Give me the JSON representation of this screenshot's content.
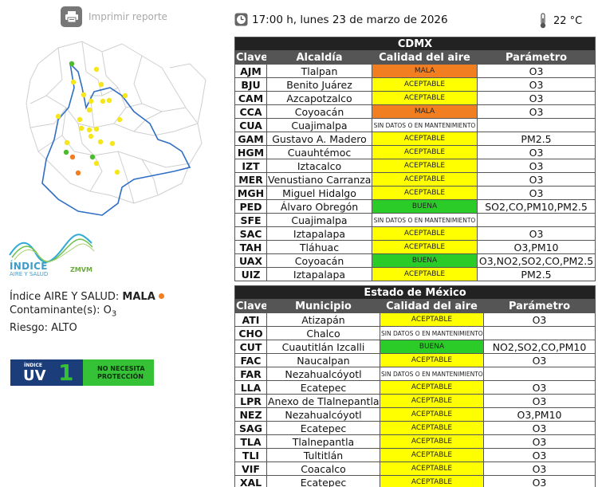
{
  "header": {
    "datetime": "17:00 h, lunes 23 de marzo de 2026",
    "temperature": "22 °C"
  },
  "print_report": {
    "label": "Imprimir reporte"
  },
  "logo": {
    "line1": "ÍNDICE",
    "line2": "AIRE Y SALUD",
    "line3": "ZMVM"
  },
  "status": {
    "index_label": "Índice AIRE Y SALUD:",
    "index_value": "MALA",
    "pollutant_label": "Contaminante(s):",
    "pollutant_value": "O",
    "pollutant_sub": "3",
    "risk_label": "Riesgo:",
    "risk_value": "ALTO"
  },
  "uv": {
    "small": "ÍNDICE",
    "big": "UV",
    "value": "1",
    "text1": "NO NECESITA",
    "text2": "PROTECCIÓN"
  },
  "colors": {
    "MALA": "#f27e22",
    "ACEPTABLE": "#ffff00",
    "BUENA": "#2bcc27",
    "SIN DATOS O EN MANTENIMIENTO": "#ffffff",
    "map_yellow": "#f5e71b",
    "map_green": "#4dbb2e",
    "map_orange": "#f27e22"
  },
  "map": {
    "stations": [
      {
        "name": "AJM",
        "level": "MALA"
      },
      {
        "name": "BJU",
        "level": "ACEPTABLE"
      },
      {
        "name": "CAM",
        "level": "ACEPTABLE"
      },
      {
        "name": "CCA",
        "level": "MALA"
      },
      {
        "name": "GAM",
        "level": "ACEPTABLE"
      },
      {
        "name": "HGM",
        "level": "ACEPTABLE"
      },
      {
        "name": "PED",
        "level": "BUENA"
      },
      {
        "name": "UAX",
        "level": "BUENA"
      },
      {
        "name": "CUT",
        "level": "BUENA"
      }
    ]
  },
  "cdmx": {
    "title": "CDMX",
    "headers": [
      "Clave",
      "Alcaldía",
      "Calidad del aire",
      "Parámetro"
    ],
    "rows": [
      {
        "clave": "AJM",
        "nombre": "Tlalpan",
        "calidad": "MALA",
        "parametro": "O3"
      },
      {
        "clave": "BJU",
        "nombre": "Benito Juárez",
        "calidad": "ACEPTABLE",
        "parametro": "O3"
      },
      {
        "clave": "CAM",
        "nombre": "Azcapotzalco",
        "calidad": "ACEPTABLE",
        "parametro": "O3"
      },
      {
        "clave": "CCA",
        "nombre": "Coyoacán",
        "calidad": "MALA",
        "parametro": "O3"
      },
      {
        "clave": "CUA",
        "nombre": "Cuajimalpa",
        "calidad": "SIN DATOS O EN MANTENIMIENTO",
        "parametro": ""
      },
      {
        "clave": "GAM",
        "nombre": "Gustavo A. Madero",
        "calidad": "ACEPTABLE",
        "parametro": "PM2.5"
      },
      {
        "clave": "HGM",
        "nombre": "Cuauhtémoc",
        "calidad": "ACEPTABLE",
        "parametro": "O3"
      },
      {
        "clave": "IZT",
        "nombre": "Iztacalco",
        "calidad": "ACEPTABLE",
        "parametro": "O3"
      },
      {
        "clave": "MER",
        "nombre": "Venustiano Carranza",
        "calidad": "ACEPTABLE",
        "parametro": "O3"
      },
      {
        "clave": "MGH",
        "nombre": "Miguel Hidalgo",
        "calidad": "ACEPTABLE",
        "parametro": "O3"
      },
      {
        "clave": "PED",
        "nombre": "Álvaro Obregón",
        "calidad": "BUENA",
        "parametro": "SO2,CO,PM10,PM2.5"
      },
      {
        "clave": "SFE",
        "nombre": "Cuajimalpa",
        "calidad": "SIN DATOS O EN MANTENIMIENTO",
        "parametro": ""
      },
      {
        "clave": "SAC",
        "nombre": "Iztapalapa",
        "calidad": "ACEPTABLE",
        "parametro": "O3"
      },
      {
        "clave": "TAH",
        "nombre": "Tláhuac",
        "calidad": "ACEPTABLE",
        "parametro": "O3,PM10"
      },
      {
        "clave": "UAX",
        "nombre": "Coyoacán",
        "calidad": "BUENA",
        "parametro": "O3,NO2,SO2,CO,PM2.5"
      },
      {
        "clave": "UIZ",
        "nombre": "Iztapalapa",
        "calidad": "ACEPTABLE",
        "parametro": "PM2.5"
      }
    ]
  },
  "edomex": {
    "title": "Estado de México",
    "headers": [
      "Clave",
      "Municipio",
      "Calidad del aire",
      "Parámetro"
    ],
    "rows": [
      {
        "clave": "ATI",
        "nombre": "Atizapán",
        "calidad": "ACEPTABLE",
        "parametro": "O3"
      },
      {
        "clave": "CHO",
        "nombre": "Chalco",
        "calidad": "SIN DATOS O EN MANTENIMIENTO",
        "parametro": ""
      },
      {
        "clave": "CUT",
        "nombre": "Cuautitlán Izcalli",
        "calidad": "BUENA",
        "parametro": "NO2,SO2,CO,PM10"
      },
      {
        "clave": "FAC",
        "nombre": "Naucalpan",
        "calidad": "ACEPTABLE",
        "parametro": "O3"
      },
      {
        "clave": "FAR",
        "nombre": "Nezahualcóyotl",
        "calidad": "SIN DATOS O EN MANTENIMIENTO",
        "parametro": ""
      },
      {
        "clave": "LLA",
        "nombre": "Ecatepec",
        "calidad": "ACEPTABLE",
        "parametro": "O3"
      },
      {
        "clave": "LPR",
        "nombre": "Anexo de Tlalnepantla",
        "calidad": "ACEPTABLE",
        "parametro": "O3"
      },
      {
        "clave": "NEZ",
        "nombre": "Nezahualcóyotl",
        "calidad": "ACEPTABLE",
        "parametro": "O3,PM10"
      },
      {
        "clave": "SAG",
        "nombre": "Ecatepec",
        "calidad": "ACEPTABLE",
        "parametro": "O3"
      },
      {
        "clave": "TLA",
        "nombre": "Tlalnepantla",
        "calidad": "ACEPTABLE",
        "parametro": "O3"
      },
      {
        "clave": "TLI",
        "nombre": "Tultitlán",
        "calidad": "ACEPTABLE",
        "parametro": "O3"
      },
      {
        "clave": "VIF",
        "nombre": "Coacalco",
        "calidad": "ACEPTABLE",
        "parametro": "O3"
      },
      {
        "clave": "XAL",
        "nombre": "Ecatepec",
        "calidad": "ACEPTABLE",
        "parametro": "O3"
      }
    ]
  }
}
